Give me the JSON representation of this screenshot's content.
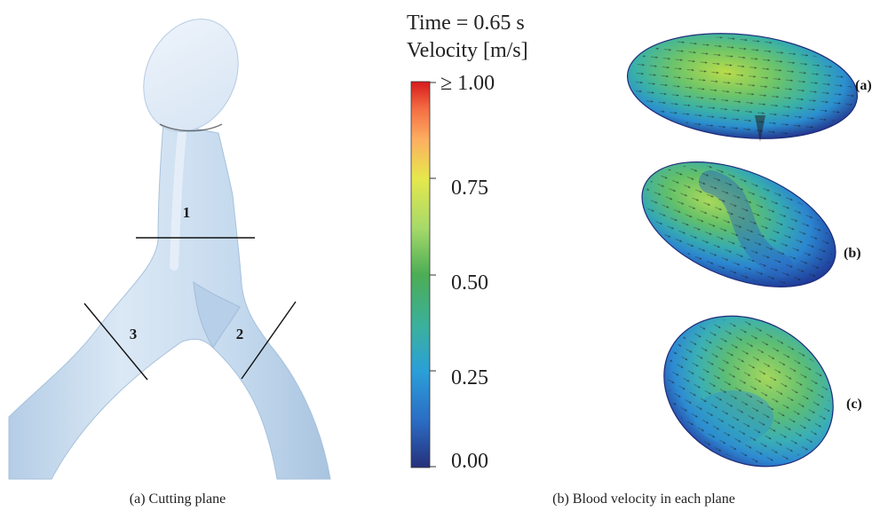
{
  "legend": {
    "time_label": "Time = 0.65 s",
    "quantity_label": "Velocity [m/s]",
    "ticks": [
      "≥ 1.00",
      "0.75",
      "0.50",
      "0.25",
      "0.00"
    ],
    "colors": [
      "#d7191c",
      "#f46d43",
      "#fdae61",
      "#fee08b",
      "#d9ef8b",
      "#a6d96a",
      "#66bd63",
      "#3ab0a0",
      "#2b9fd8",
      "#2b6cc4",
      "#26307a"
    ]
  },
  "geometry_panel": {
    "plane_labels": [
      "1",
      "2",
      "3"
    ],
    "vessel_color": "#c8dcef"
  },
  "velocity_panel": {
    "slice_labels": [
      "(a)",
      "(b)",
      "(c)"
    ]
  },
  "captions": {
    "left": "(a)  Cutting plane",
    "right": "(b)  Blood velocity in each plane"
  }
}
